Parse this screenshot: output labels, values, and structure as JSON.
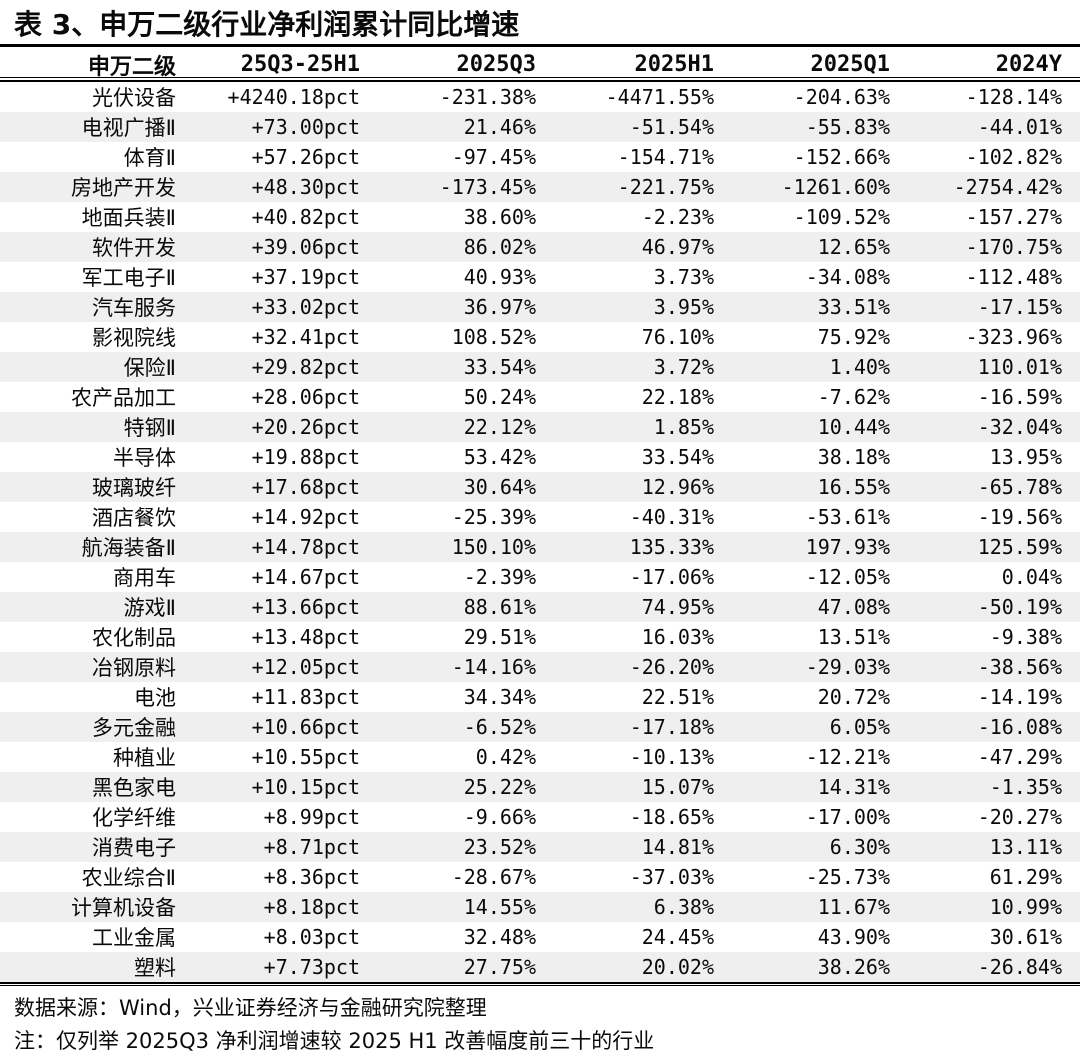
{
  "title": "表 3、申万二级行业净利润累计同比增速",
  "table": {
    "columns": [
      "申万二级",
      "25Q3-25H1",
      "2025Q3",
      "2025H1",
      "2025Q1",
      "2024Y"
    ],
    "rows": [
      [
        "光伏设备",
        "+4240.18pct",
        "-231.38%",
        "-4471.55%",
        "-204.63%",
        "-128.14%"
      ],
      [
        "电视广播Ⅱ",
        "+73.00pct",
        "21.46%",
        "-51.54%",
        "-55.83%",
        "-44.01%"
      ],
      [
        "体育Ⅱ",
        "+57.26pct",
        "-97.45%",
        "-154.71%",
        "-152.66%",
        "-102.82%"
      ],
      [
        "房地产开发",
        "+48.30pct",
        "-173.45%",
        "-221.75%",
        "-1261.60%",
        "-2754.42%"
      ],
      [
        "地面兵装Ⅱ",
        "+40.82pct",
        "38.60%",
        "-2.23%",
        "-109.52%",
        "-157.27%"
      ],
      [
        "软件开发",
        "+39.06pct",
        "86.02%",
        "46.97%",
        "12.65%",
        "-170.75%"
      ],
      [
        "军工电子Ⅱ",
        "+37.19pct",
        "40.93%",
        "3.73%",
        "-34.08%",
        "-112.48%"
      ],
      [
        "汽车服务",
        "+33.02pct",
        "36.97%",
        "3.95%",
        "33.51%",
        "-17.15%"
      ],
      [
        "影视院线",
        "+32.41pct",
        "108.52%",
        "76.10%",
        "75.92%",
        "-323.96%"
      ],
      [
        "保险Ⅱ",
        "+29.82pct",
        "33.54%",
        "3.72%",
        "1.40%",
        "110.01%"
      ],
      [
        "农产品加工",
        "+28.06pct",
        "50.24%",
        "22.18%",
        "-7.62%",
        "-16.59%"
      ],
      [
        "特钢Ⅱ",
        "+20.26pct",
        "22.12%",
        "1.85%",
        "10.44%",
        "-32.04%"
      ],
      [
        "半导体",
        "+19.88pct",
        "53.42%",
        "33.54%",
        "38.18%",
        "13.95%"
      ],
      [
        "玻璃玻纤",
        "+17.68pct",
        "30.64%",
        "12.96%",
        "16.55%",
        "-65.78%"
      ],
      [
        "酒店餐饮",
        "+14.92pct",
        "-25.39%",
        "-40.31%",
        "-53.61%",
        "-19.56%"
      ],
      [
        "航海装备Ⅱ",
        "+14.78pct",
        "150.10%",
        "135.33%",
        "197.93%",
        "125.59%"
      ],
      [
        "商用车",
        "+14.67pct",
        "-2.39%",
        "-17.06%",
        "-12.05%",
        "0.04%"
      ],
      [
        "游戏Ⅱ",
        "+13.66pct",
        "88.61%",
        "74.95%",
        "47.08%",
        "-50.19%"
      ],
      [
        "农化制品",
        "+13.48pct",
        "29.51%",
        "16.03%",
        "13.51%",
        "-9.38%"
      ],
      [
        "冶钢原料",
        "+12.05pct",
        "-14.16%",
        "-26.20%",
        "-29.03%",
        "-38.56%"
      ],
      [
        "电池",
        "+11.83pct",
        "34.34%",
        "22.51%",
        "20.72%",
        "-14.19%"
      ],
      [
        "多元金融",
        "+10.66pct",
        "-6.52%",
        "-17.18%",
        "6.05%",
        "-16.08%"
      ],
      [
        "种植业",
        "+10.55pct",
        "0.42%",
        "-10.13%",
        "-12.21%",
        "-47.29%"
      ],
      [
        "黑色家电",
        "+10.15pct",
        "25.22%",
        "15.07%",
        "14.31%",
        "-1.35%"
      ],
      [
        "化学纤维",
        "+8.99pct",
        "-9.66%",
        "-18.65%",
        "-17.00%",
        "-20.27%"
      ],
      [
        "消费电子",
        "+8.71pct",
        "23.52%",
        "14.81%",
        "6.30%",
        "13.11%"
      ],
      [
        "农业综合Ⅱ",
        "+8.36pct",
        "-28.67%",
        "-37.03%",
        "-25.73%",
        "61.29%"
      ],
      [
        "计算机设备",
        "+8.18pct",
        "14.55%",
        "6.38%",
        "11.67%",
        "10.99%"
      ],
      [
        "工业金属",
        "+8.03pct",
        "32.48%",
        "24.45%",
        "43.90%",
        "30.61%"
      ],
      [
        "塑料",
        "+7.73pct",
        "27.75%",
        "20.02%",
        "38.26%",
        "-26.84%"
      ]
    ]
  },
  "footer": {
    "source": "数据来源：Wind，兴业证券经济与金融研究院整理",
    "note": "注：仅列举 2025Q3 净利润增速较 2025 H1 改善幅度前三十的行业"
  },
  "colors": {
    "stripe": "#efefef",
    "rule": "#000000",
    "text": "#0a0a0a",
    "background": "#ffffff"
  }
}
